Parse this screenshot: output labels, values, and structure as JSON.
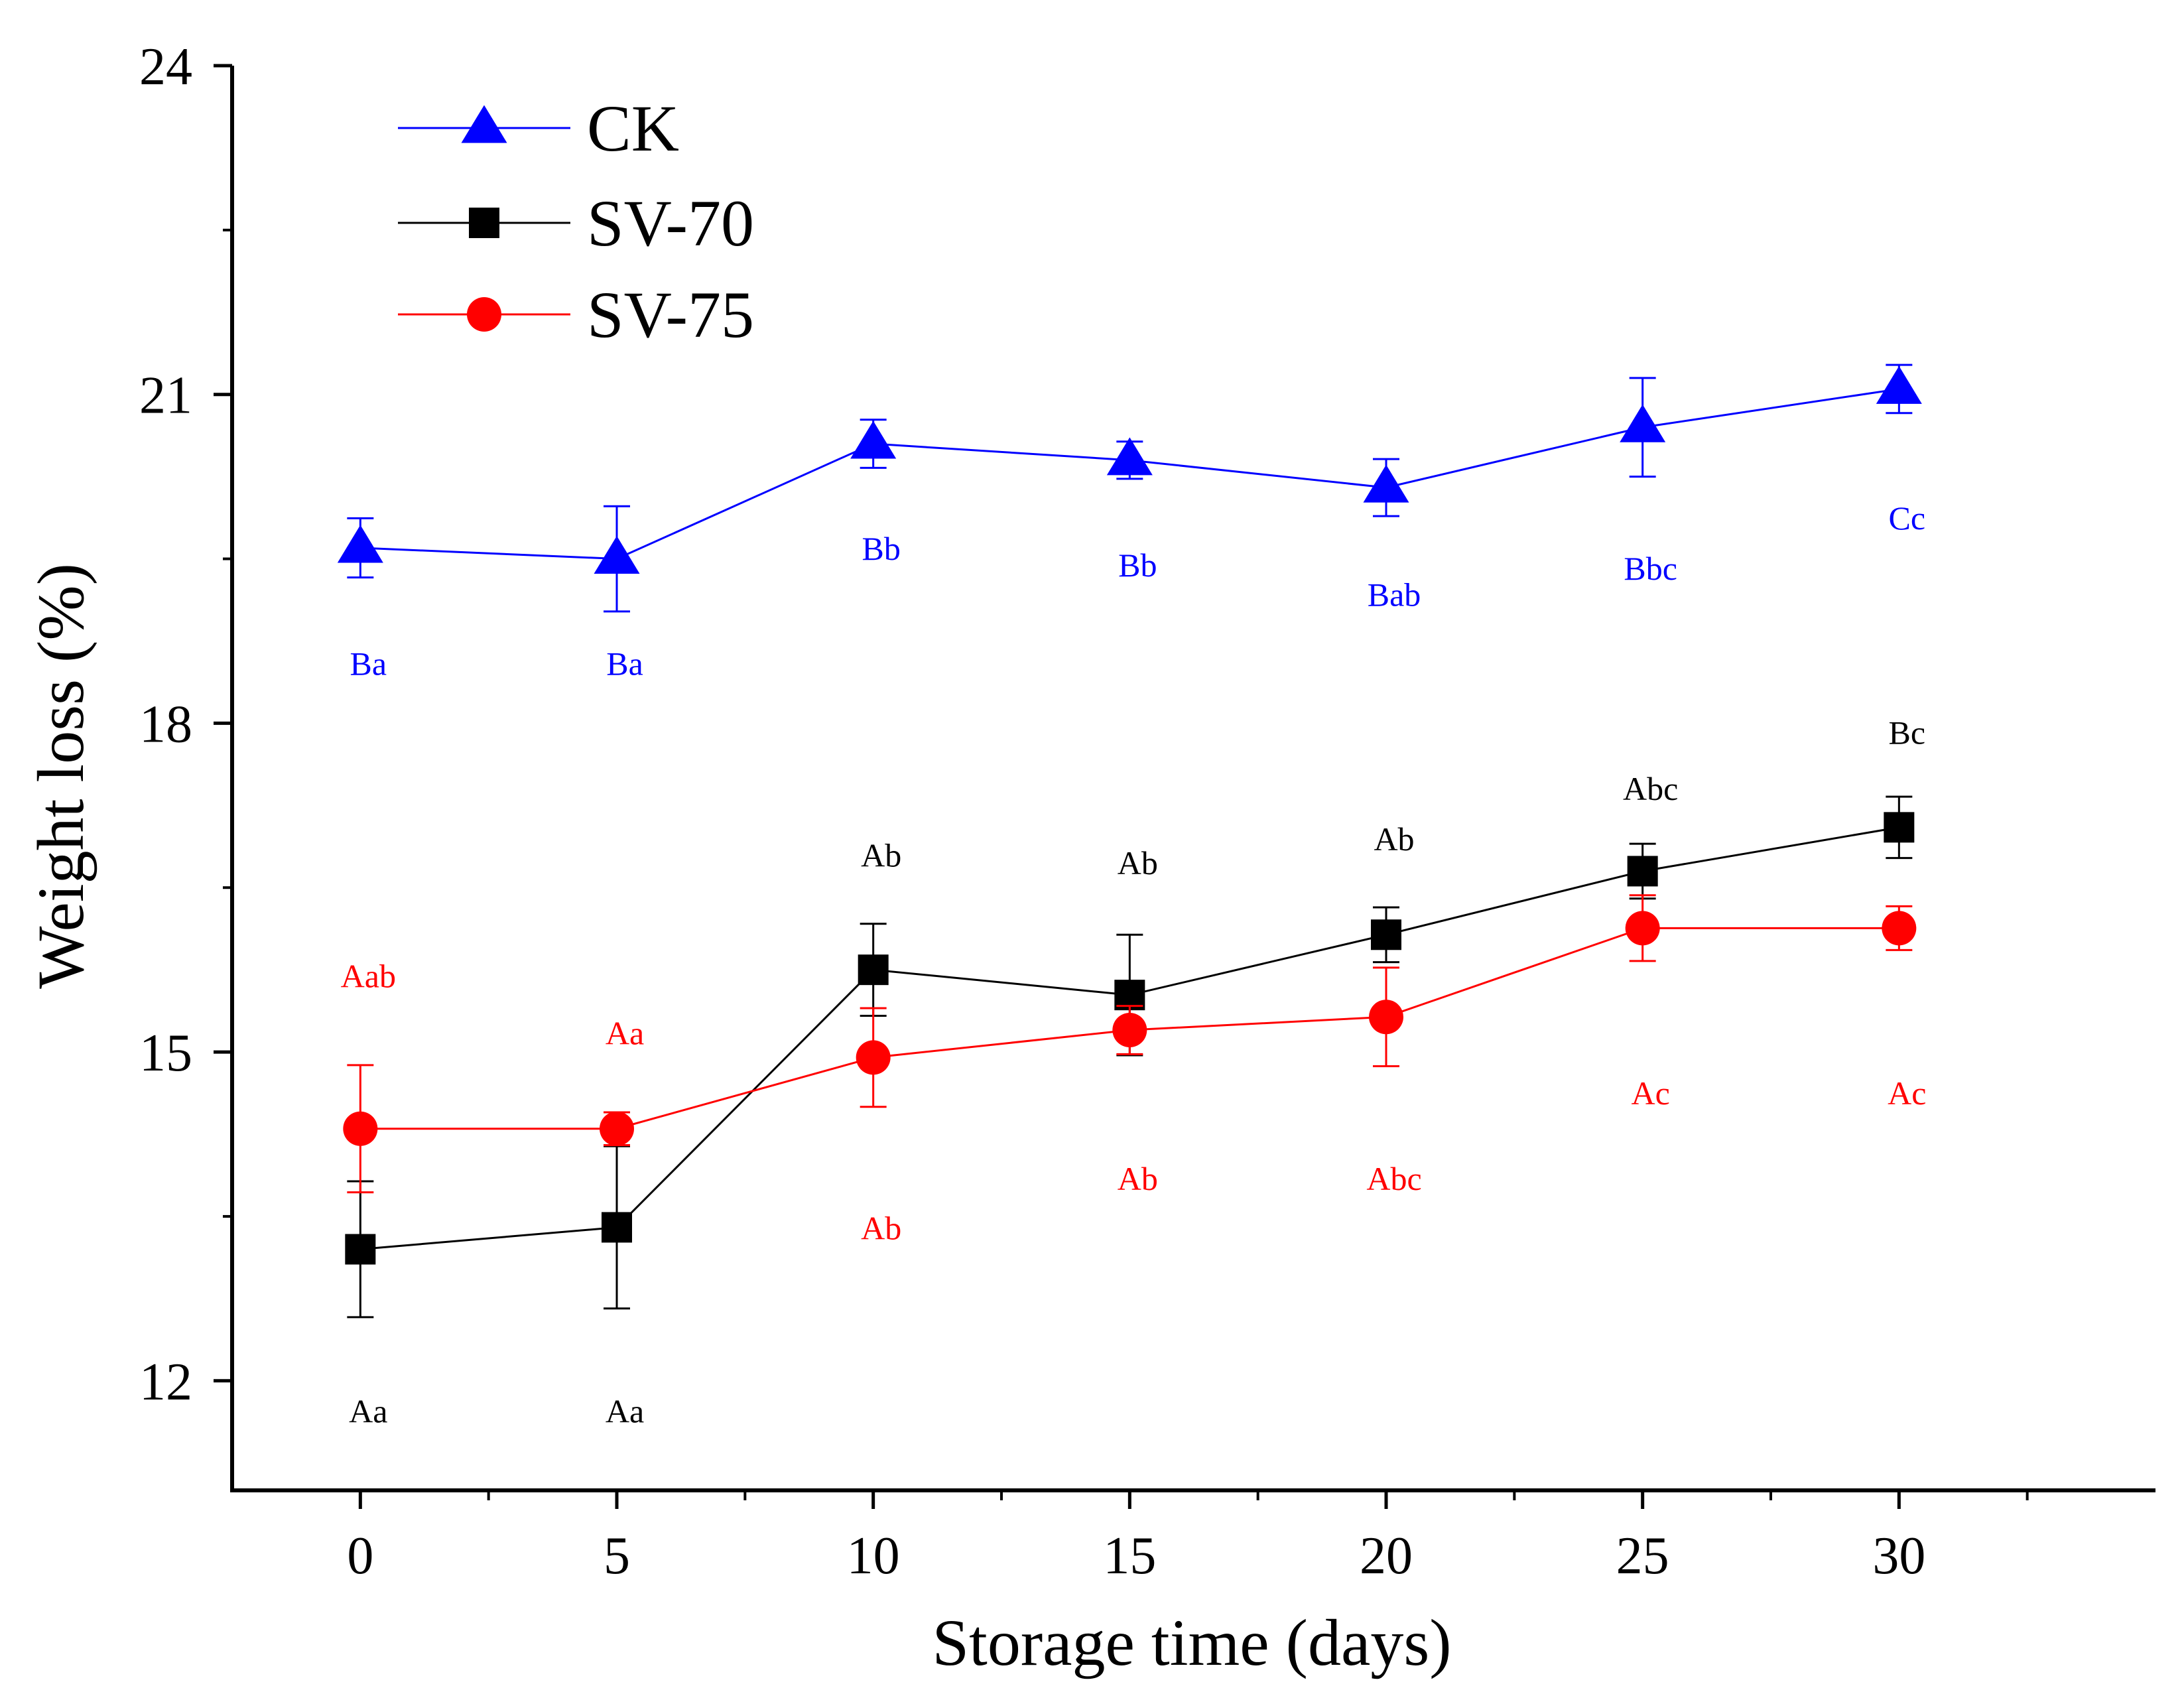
{
  "chart_data": {
    "type": "line",
    "title": "",
    "xlabel": "Storage time (days)",
    "ylabel": "Weight loss (%)",
    "x": [
      0,
      5,
      10,
      15,
      20,
      25,
      30
    ],
    "xticks": [
      "0",
      "5",
      "10",
      "15",
      "20",
      "25",
      "30"
    ],
    "yticks": [
      "12",
      "15",
      "18",
      "21",
      "24"
    ],
    "xlim": [
      -2.5,
      35
    ],
    "ylim": [
      11,
      24
    ],
    "grid": false,
    "legend_position": "top-left",
    "series": [
      {
        "name": "CK",
        "color": "#0000ff",
        "marker": "triangle",
        "values": [
          19.6,
          19.5,
          20.55,
          20.4,
          20.15,
          20.7,
          21.05
        ],
        "errors": [
          0.27,
          0.48,
          0.22,
          0.17,
          0.26,
          0.45,
          0.22
        ],
        "letters": [
          "Ba",
          "Ba",
          "Bb",
          "Bb",
          "Bab",
          "Bbc",
          "Cc"
        ],
        "letter_y": [
          18.55,
          18.55,
          19.6,
          19.45,
          19.18,
          19.42,
          19.88
        ]
      },
      {
        "name": "SV-70",
        "color": "#000000",
        "marker": "square",
        "values": [
          13.2,
          13.4,
          15.75,
          15.52,
          16.07,
          16.65,
          17.05
        ],
        "errors": [
          0.62,
          0.74,
          0.42,
          0.55,
          0.25,
          0.25,
          0.28
        ],
        "letters": [
          "Aa",
          "Aa",
          "Ab",
          "Ab",
          "Ab",
          "Abc",
          "Bc"
        ],
        "letter_y": [
          11.73,
          11.73,
          16.8,
          16.73,
          16.95,
          17.41,
          17.92
        ]
      },
      {
        "name": "SV-75",
        "color": "#ff0000",
        "marker": "circle",
        "values": [
          14.3,
          14.3,
          14.95,
          15.2,
          15.32,
          16.13,
          16.13
        ],
        "errors": [
          0.58,
          0.15,
          0.45,
          0.22,
          0.45,
          0.3,
          0.2
        ],
        "letters": [
          "Aab",
          "Aa",
          "Ab",
          "Ab",
          "Abc",
          "Ac",
          "Ac"
        ],
        "letter_y": [
          15.7,
          15.18,
          13.4,
          13.85,
          13.85,
          14.63,
          14.63
        ]
      }
    ]
  }
}
